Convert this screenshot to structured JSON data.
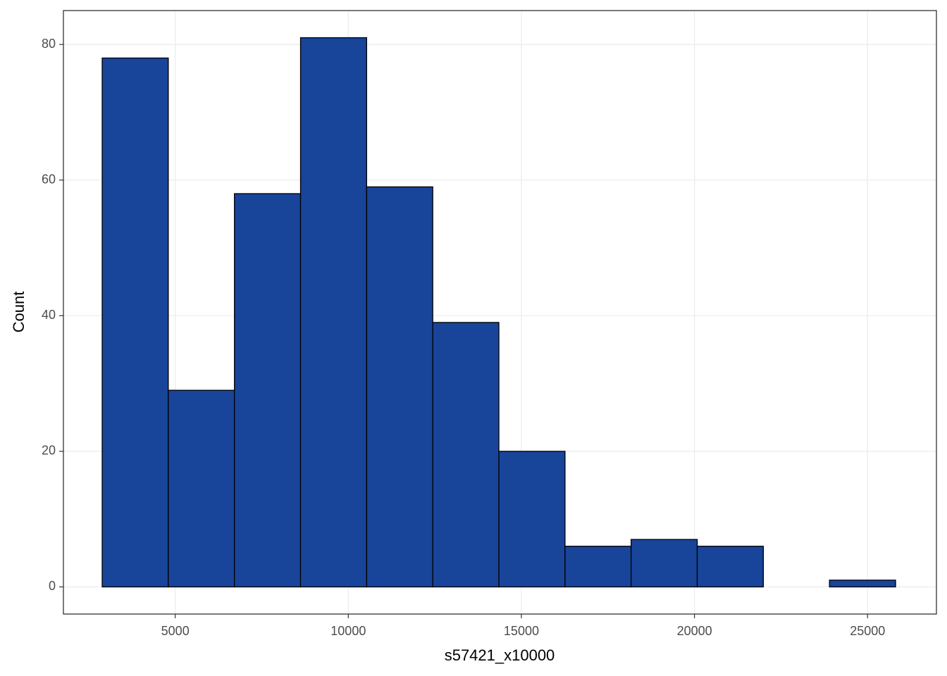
{
  "chart_data": {
    "type": "histogram",
    "x_label": "s57421_x10000",
    "y_label": "Count",
    "bins": [
      2890,
      4800,
      6710,
      8620,
      10530,
      12440,
      14350,
      16260,
      18170,
      20080,
      21990,
      23900,
      25810
    ],
    "values": [
      78,
      29,
      58,
      81,
      59,
      39,
      20,
      6,
      7,
      6,
      0,
      1
    ],
    "color": "#18449a",
    "edge_color": "#000000",
    "xlim": [
      1770,
      26990
    ],
    "xticks": [
      5000,
      10000,
      15000,
      20000,
      25000
    ],
    "ylim": [
      -4,
      85
    ],
    "yticks": [
      0,
      20,
      40,
      60,
      80
    ],
    "grid": true
  }
}
